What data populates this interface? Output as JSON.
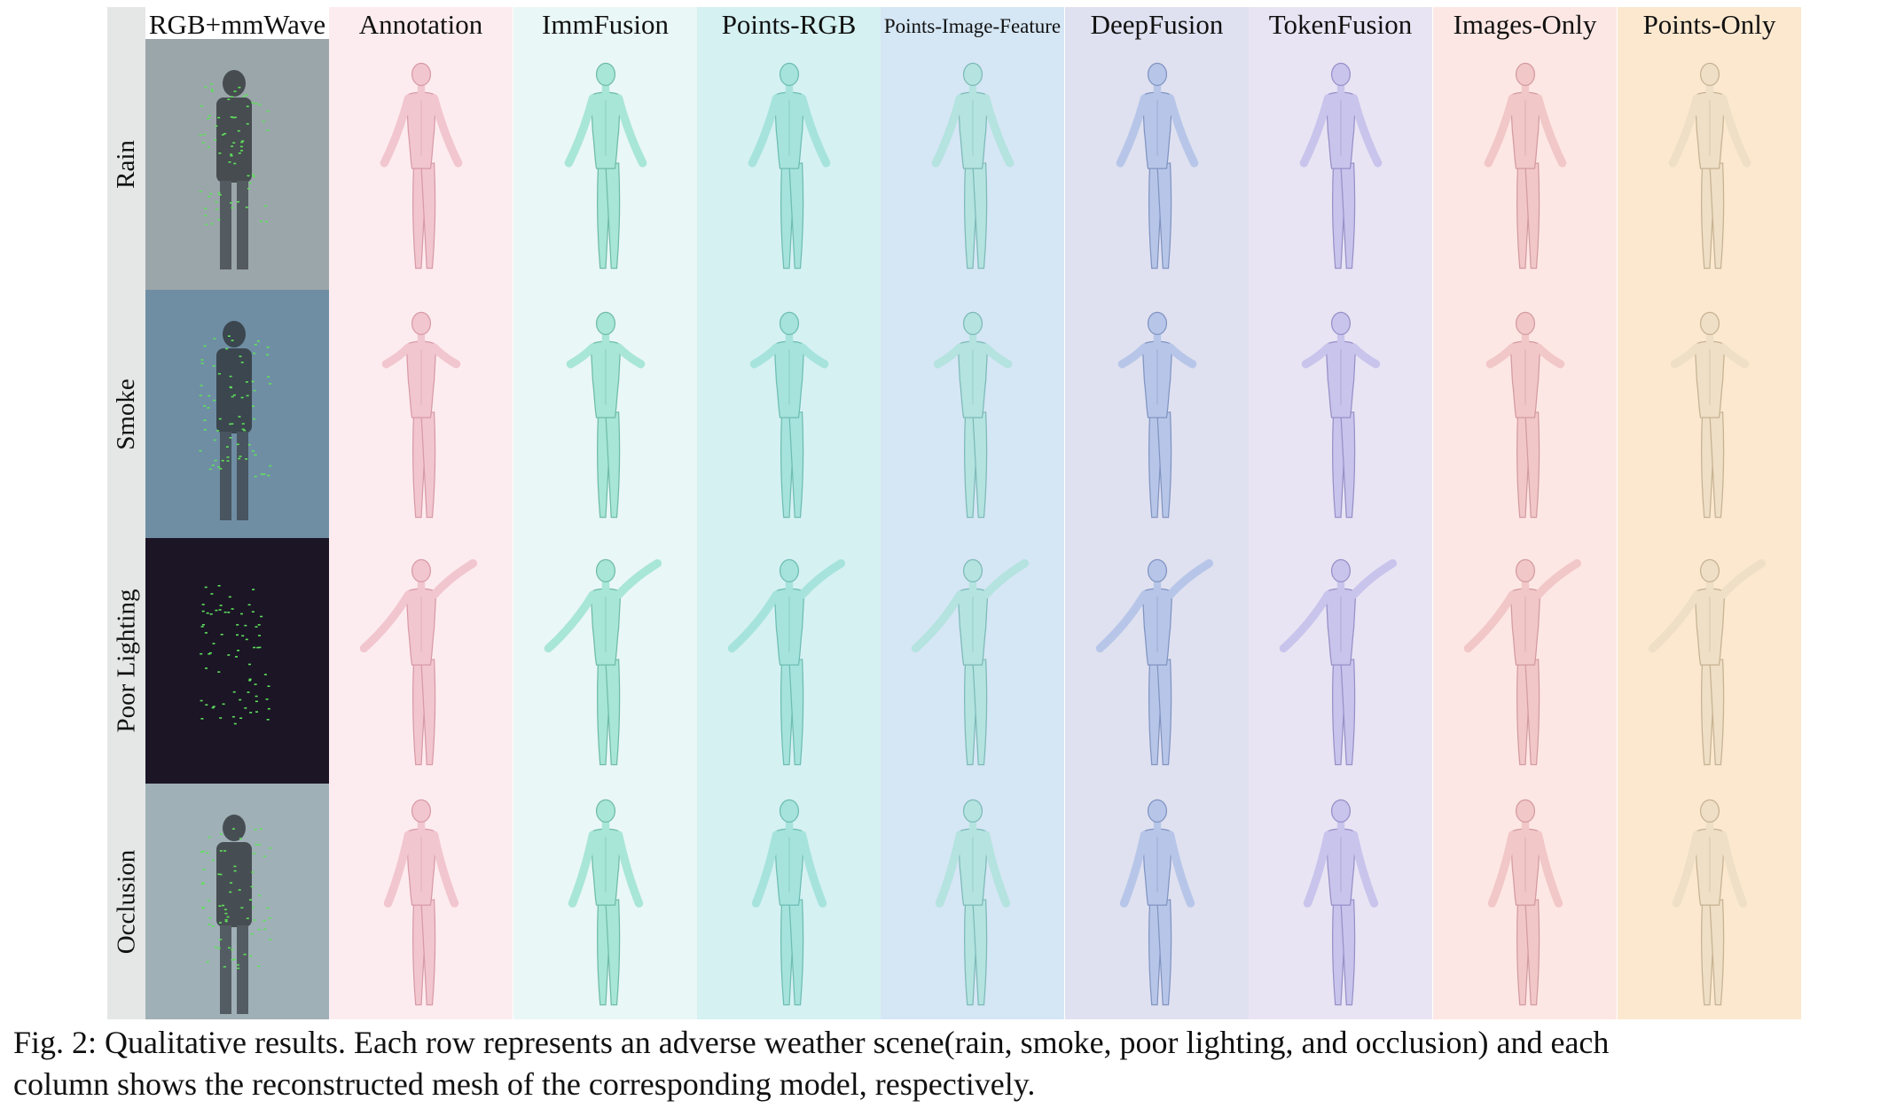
{
  "figure": {
    "row_labels": [
      "Rain",
      "Smoke",
      "Poor Lighting",
      "Occlusion"
    ],
    "input_column": {
      "header": "RGB+mmWave",
      "scene_tints": [
        "#9aa6aa",
        "#6f8ea4",
        "#1b1526",
        "#9fb0b6"
      ]
    },
    "columns": [
      {
        "header": "Annotation",
        "bg": "#fdecef",
        "mesh": "#f1c6cf",
        "shade": "#d89aa7"
      },
      {
        "header": "ImmFusion",
        "bg": "#e9f7f6",
        "mesh": "#a8e6d7",
        "shade": "#6fbca7"
      },
      {
        "header": "Points-RGB",
        "bg": "#d5f1f2",
        "mesh": "#a6e3dc",
        "shade": "#6dbdb3"
      },
      {
        "header": "Points-Image-Feature",
        "bg": "#d5e6f4",
        "mesh": "#b4e3e0",
        "shade": "#7dbab8"
      },
      {
        "header": "DeepFusion",
        "bg": "#dfe1f0",
        "mesh": "#b7c6e8",
        "shade": "#8193c2"
      },
      {
        "header": "TokenFusion",
        "bg": "#e9e4f3",
        "mesh": "#c9c4ec",
        "shade": "#9790c8"
      },
      {
        "header": "Images-Only",
        "bg": "#fde7e4",
        "mesh": "#f1c7c8",
        "shade": "#d39ba1"
      },
      {
        "header": "Points-Only",
        "bg": "#fbe8cf",
        "mesh": "#eedfc6",
        "shade": "#c7b292"
      }
    ]
  },
  "caption": {
    "line1": "Fig. 2: Qualitative results. Each row represents an adverse weather scene(rain, smoke, poor lighting, and occlusion) and each",
    "line2": "column shows the reconstructed mesh of the corresponding model, respectively."
  }
}
